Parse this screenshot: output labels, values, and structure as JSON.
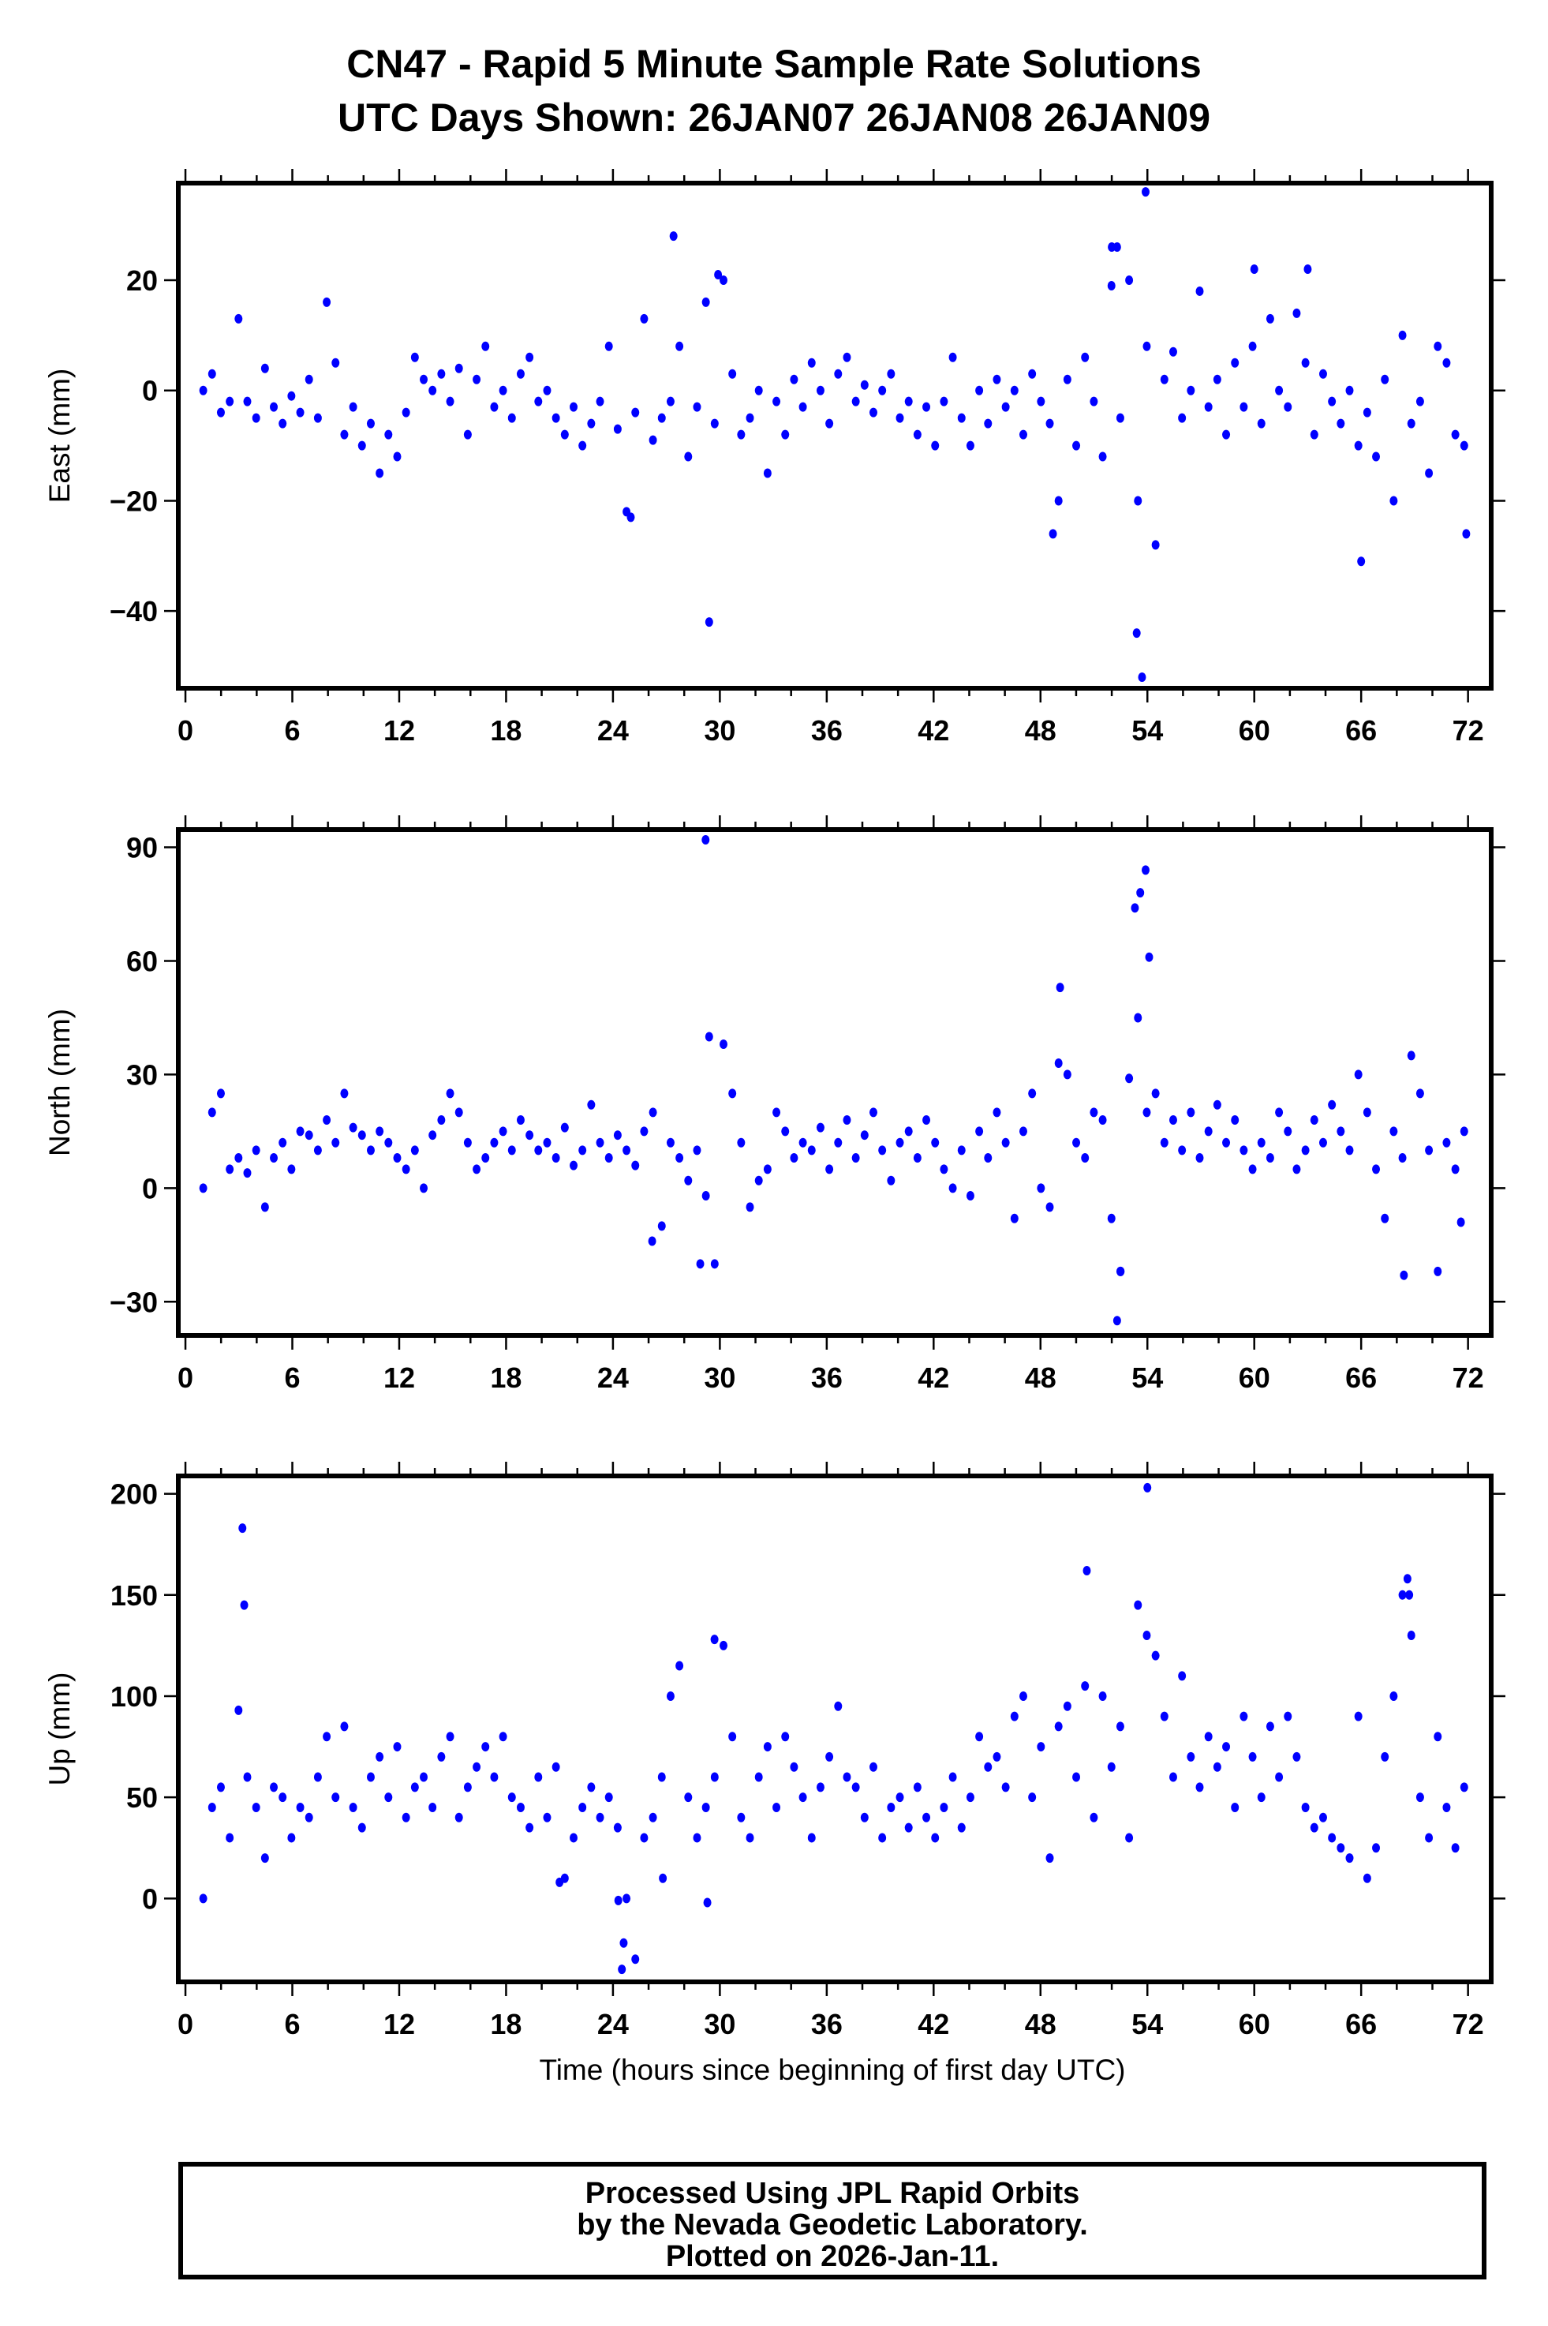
{
  "title_line1": "CN47 - Rapid 5 Minute Sample Rate Solutions",
  "title_line2": "UTC Days Shown:  26JAN07 26JAN08 26JAN09",
  "footer": {
    "line1": "Processed Using JPL Rapid Orbits",
    "line2": "by the Nevada Geodetic Laboratory.",
    "line3": "Plotted on 2026-Jan-11."
  },
  "colors": {
    "points": "#0000ff",
    "frame": "#000000"
  },
  "chart_data": [
    {
      "type": "scatter",
      "ylabel": "East (mm)",
      "xlabel": "",
      "xlim": [
        -0.4,
        73.3
      ],
      "ylim": [
        -54,
        37.6
      ],
      "xticks": [
        "0",
        "6",
        "12",
        "18",
        "24",
        "30",
        "36",
        "42",
        "48",
        "54",
        "60",
        "66",
        "72"
      ],
      "yticks": [
        "20",
        "0",
        "−20",
        "−40"
      ],
      "ytick_values": [
        20,
        0,
        -20,
        -40
      ],
      "grid": false,
      "series": {
        "name": "East",
        "x_start": 1.0,
        "x_step": 0.495,
        "values": [
          0,
          3,
          -4,
          -2,
          13,
          -2,
          -5,
          4,
          -3,
          -6,
          -1,
          -4,
          2,
          -5,
          16,
          5,
          -8,
          -3,
          -10,
          -6,
          -15,
          -8,
          -12,
          -4,
          6,
          2,
          0,
          3,
          -2,
          4,
          -8,
          2,
          8,
          -3,
          0,
          -5,
          3,
          6,
          -2,
          0,
          -5,
          -8,
          -3,
          -10,
          -6,
          -2,
          8,
          -7,
          -22,
          -4,
          13,
          -9,
          -5,
          -2,
          8,
          -12,
          -3,
          16,
          -6,
          20,
          3,
          -8,
          -5,
          0,
          -15,
          -2,
          -8,
          2,
          -3,
          5,
          0,
          -6,
          3,
          6,
          -2,
          1,
          -4,
          0,
          3,
          -5,
          -2,
          -8,
          -3,
          -10,
          -2,
          6,
          -5,
          -10,
          0,
          -6,
          2,
          -3,
          0,
          -8,
          3,
          -2,
          -6,
          -20,
          2,
          -10,
          6,
          -2,
          -12,
          19,
          -5,
          20,
          -20,
          8,
          -28,
          2,
          7,
          -5,
          0,
          18,
          -3,
          2,
          -8,
          5,
          -3,
          8,
          -6,
          13,
          0,
          -3,
          14,
          5,
          -8,
          3,
          -2,
          -6,
          0,
          -10,
          -4,
          -12,
          2,
          -20,
          10,
          -6,
          -2,
          -15,
          8,
          5,
          -8,
          -10
        ],
        "outliers": [
          [
            27.4,
            28
          ],
          [
            29.4,
            -42
          ],
          [
            53.9,
            36
          ],
          [
            53.4,
            -44
          ],
          [
            53.7,
            -52
          ],
          [
            52.3,
            26
          ],
          [
            52.0,
            26
          ],
          [
            60.0,
            22
          ],
          [
            63.0,
            22
          ],
          [
            66.0,
            -31
          ],
          [
            71.9,
            -26
          ],
          [
            48.7,
            -26
          ],
          [
            29.9,
            21
          ],
          [
            25.0,
            -23
          ]
        ]
      }
    },
    {
      "type": "scatter",
      "ylabel": "North (mm)",
      "xlabel": "",
      "xlim": [
        -0.4,
        73.3
      ],
      "ylim": [
        -38.9,
        94.7
      ],
      "xticks": [
        "0",
        "6",
        "12",
        "18",
        "24",
        "30",
        "36",
        "42",
        "48",
        "54",
        "60",
        "66",
        "72"
      ],
      "yticks": [
        "90",
        "60",
        "30",
        "0",
        "−30"
      ],
      "ytick_values": [
        90,
        60,
        30,
        0,
        -30
      ],
      "grid": false,
      "series": {
        "name": "North",
        "x_start": 1.0,
        "x_step": 0.495,
        "values": [
          0,
          20,
          25,
          5,
          8,
          4,
          10,
          -5,
          8,
          12,
          5,
          15,
          14,
          10,
          18,
          12,
          25,
          16,
          14,
          10,
          15,
          12,
          8,
          5,
          10,
          0,
          14,
          18,
          25,
          20,
          12,
          5,
          8,
          12,
          15,
          10,
          18,
          14,
          10,
          12,
          8,
          16,
          6,
          10,
          22,
          12,
          8,
          14,
          10,
          6,
          15,
          20,
          -10,
          12,
          8,
          2,
          10,
          -2,
          -20,
          38,
          25,
          12,
          -5,
          2,
          5,
          20,
          15,
          8,
          12,
          10,
          16,
          5,
          12,
          18,
          8,
          14,
          20,
          10,
          2,
          12,
          15,
          8,
          18,
          12,
          5,
          0,
          10,
          -2,
          15,
          8,
          20,
          12,
          -8,
          15,
          25,
          0,
          -5,
          33,
          30,
          12,
          8,
          20,
          18,
          -8,
          -22,
          29,
          45,
          20,
          25,
          12,
          18,
          10,
          20,
          8,
          15,
          22,
          12,
          18,
          10,
          5,
          12,
          8,
          20,
          15,
          5,
          10,
          18,
          12,
          22,
          15,
          10,
          30,
          20,
          5,
          -8,
          15,
          8,
          35,
          25,
          10,
          -22,
          12,
          5,
          15
        ],
        "outliers": [
          [
            29.2,
            92
          ],
          [
            53.9,
            84
          ],
          [
            53.6,
            78
          ],
          [
            53.3,
            74
          ],
          [
            54.1,
            61
          ],
          [
            52.3,
            -35
          ],
          [
            52.5,
            -22
          ],
          [
            29.4,
            40
          ],
          [
            49.1,
            53
          ],
          [
            26.2,
            -14
          ],
          [
            28.9,
            -20
          ],
          [
            71.6,
            -9
          ],
          [
            68.4,
            -23
          ]
        ]
      }
    },
    {
      "type": "scatter",
      "ylabel": "Up (mm)",
      "xlabel": "Time (hours since beginning of first day UTC)",
      "xlim": [
        -0.4,
        73.3
      ],
      "ylim": [
        -41.2,
        208.8
      ],
      "xticks": [
        "0",
        "6",
        "12",
        "18",
        "24",
        "30",
        "36",
        "42",
        "48",
        "54",
        "60",
        "66",
        "72"
      ],
      "yticks": [
        "200",
        "150",
        "100",
        "50",
        "0"
      ],
      "ytick_values": [
        200,
        150,
        100,
        50,
        0
      ],
      "grid": false,
      "series": {
        "name": "Up",
        "x_start": 1.0,
        "x_step": 0.495,
        "values": [
          0,
          45,
          55,
          30,
          93,
          60,
          45,
          20,
          55,
          50,
          30,
          45,
          40,
          60,
          80,
          50,
          85,
          45,
          35,
          60,
          70,
          50,
          75,
          40,
          55,
          60,
          45,
          70,
          80,
          40,
          55,
          65,
          75,
          60,
          80,
          50,
          45,
          35,
          60,
          40,
          65,
          10,
          30,
          45,
          55,
          40,
          50,
          35,
          0,
          -30,
          30,
          40,
          60,
          100,
          115,
          50,
          30,
          45,
          60,
          125,
          80,
          40,
          30,
          60,
          75,
          45,
          80,
          65,
          50,
          30,
          55,
          70,
          95,
          60,
          55,
          40,
          65,
          30,
          45,
          50,
          35,
          55,
          40,
          30,
          45,
          60,
          35,
          50,
          80,
          65,
          70,
          55,
          90,
          100,
          50,
          75,
          20,
          85,
          95,
          60,
          105,
          40,
          100,
          65,
          85,
          30,
          145,
          130,
          120,
          90,
          60,
          110,
          70,
          55,
          80,
          65,
          75,
          45,
          90,
          70,
          50,
          85,
          60,
          90,
          70,
          45,
          35,
          40,
          30,
          25,
          20,
          90,
          10,
          25,
          70,
          100,
          150,
          130,
          50,
          30,
          80,
          45,
          25,
          55
        ],
        "outliers": [
          [
            3.2,
            183
          ],
          [
            3.3,
            145
          ],
          [
            54.0,
            203
          ],
          [
            24.5,
            -35
          ],
          [
            24.6,
            -22
          ],
          [
            24.3,
            -1
          ],
          [
            29.3,
            -2
          ],
          [
            26.8,
            10
          ],
          [
            21.0,
            8
          ],
          [
            50.6,
            162
          ],
          [
            68.6,
            158
          ],
          [
            68.7,
            150
          ],
          [
            29.7,
            128
          ]
        ]
      }
    }
  ]
}
